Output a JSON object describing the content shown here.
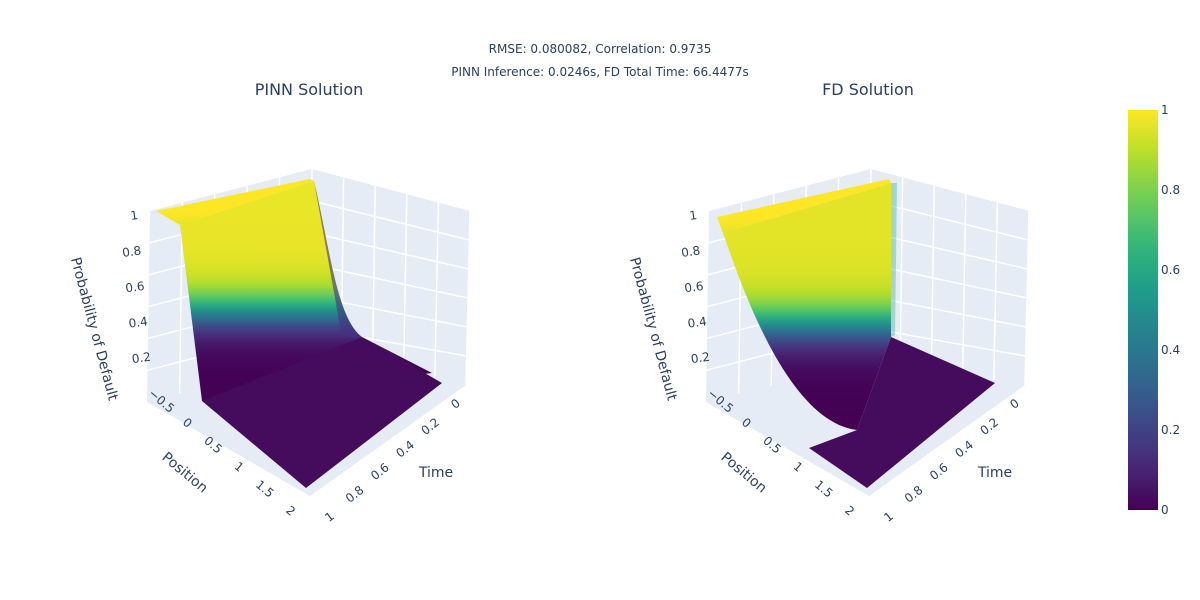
{
  "header": {
    "line1": "RMSE: 0.080082, Correlation: 0.9735",
    "line2": "PINN Inference: 0.0246s, FD Total Time: 66.4477s"
  },
  "colorscale": {
    "name": "Viridis",
    "stops": [
      "#440154",
      "#482878",
      "#3e4989",
      "#31688e",
      "#26828e",
      "#1f9e89",
      "#35b779",
      "#6ece58",
      "#b5de2b",
      "#fde725"
    ],
    "tick_labels": [
      "0",
      "0.2",
      "0.4",
      "0.6",
      "0.8",
      "1"
    ],
    "range": [
      0,
      1
    ]
  },
  "chart_data": [
    {
      "type": "surface",
      "title": "PINN Solution",
      "xlabel": "Position",
      "ylabel": "Time",
      "zlabel": "Probability of Default",
      "x_ticks": [
        "−0.5",
        "0",
        "0.5",
        "1",
        "1.5",
        "2"
      ],
      "y_ticks": [
        "0",
        "0.2",
        "0.4",
        "0.6",
        "0.8",
        "1"
      ],
      "z_ticks": [
        "0.2",
        "0.4",
        "0.6",
        "0.8",
        "1"
      ],
      "xlim": [
        -0.5,
        2
      ],
      "ylim": [
        0,
        1
      ],
      "zlim": [
        0,
        1
      ],
      "description_points": [
        {
          "position": -0.5,
          "time": 0,
          "value": 1.0
        },
        {
          "position": -0.5,
          "time": 1,
          "value": 0.98
        },
        {
          "position": 0,
          "time": 0,
          "value": 0.0
        },
        {
          "position": 0,
          "time": 1,
          "value": 0.95
        },
        {
          "position": 0.5,
          "time": 1,
          "value": 0.0
        },
        {
          "position": 2,
          "time": 0,
          "value": 0.0
        },
        {
          "position": 2,
          "time": 1,
          "value": 0.0
        }
      ]
    },
    {
      "type": "surface",
      "title": "FD Solution",
      "xlabel": "Position",
      "ylabel": "Time",
      "zlabel": "Probability of Default",
      "x_ticks": [
        "−0.5",
        "0",
        "0.5",
        "1",
        "1.5",
        "2"
      ],
      "y_ticks": [
        "0",
        "0.2",
        "0.4",
        "0.6",
        "0.8",
        "1"
      ],
      "z_ticks": [
        "0.2",
        "0.4",
        "0.6",
        "0.8",
        "1"
      ],
      "xlim": [
        -0.5,
        2
      ],
      "ylim": [
        0,
        1
      ],
      "zlim": [
        0,
        1
      ],
      "description_points": [
        {
          "position": -0.5,
          "time": 0,
          "value": 1.0
        },
        {
          "position": -0.5,
          "time": 1,
          "value": 1.0
        },
        {
          "position": 0,
          "time": 0,
          "value": 0.0
        },
        {
          "position": 0.5,
          "time": 1,
          "value": 0.1
        },
        {
          "position": 2,
          "time": 0,
          "value": 0.0
        },
        {
          "position": 2,
          "time": 1,
          "value": 0.0
        }
      ]
    }
  ]
}
